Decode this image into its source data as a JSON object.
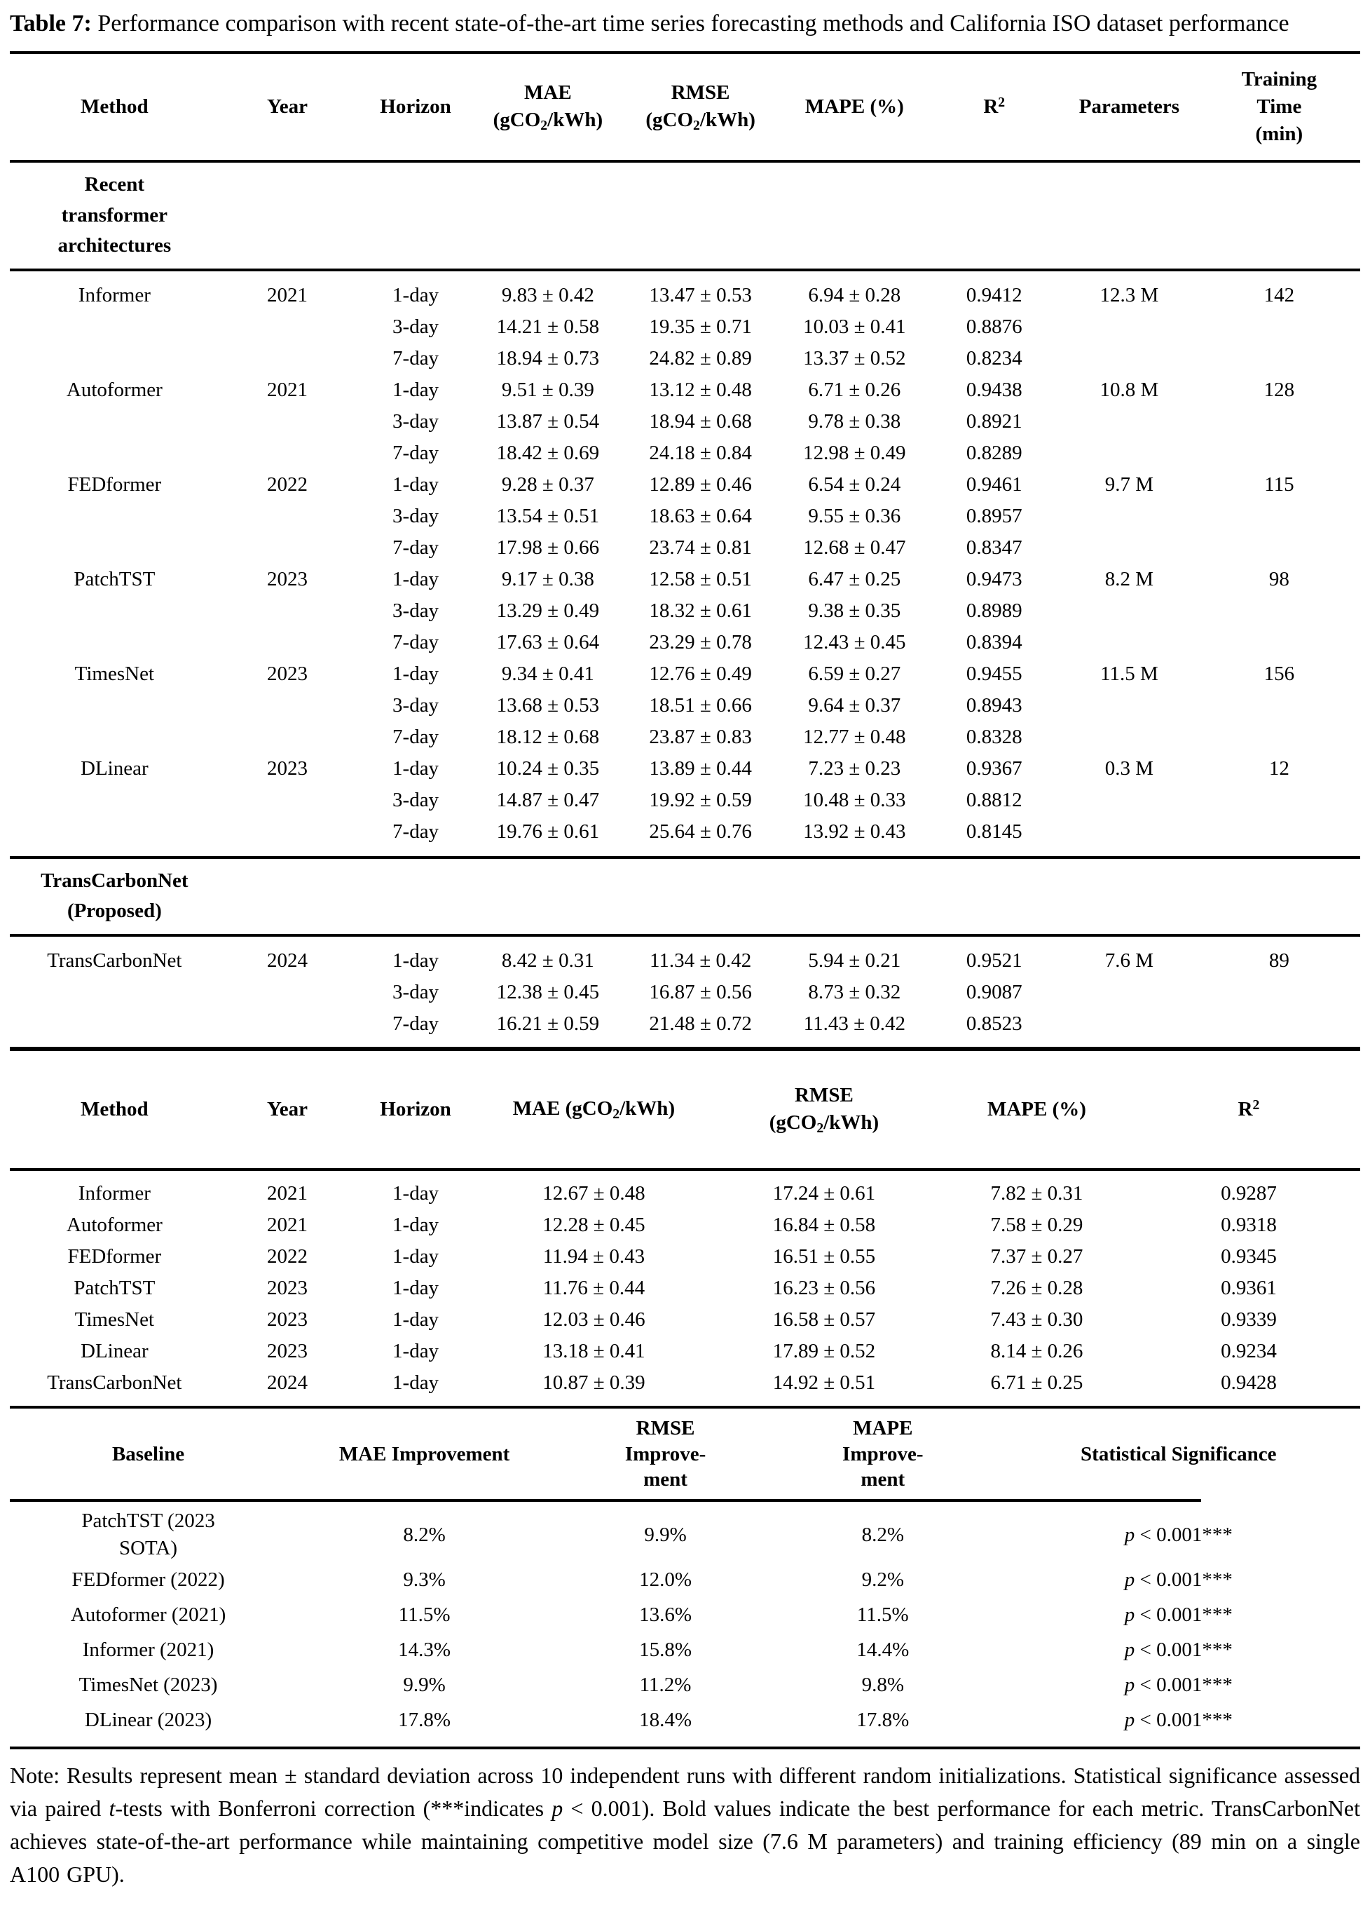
{
  "caption": {
    "label": "Table 7:",
    "text": " Performance comparison with recent state-of-the-art time series forecasting methods and California ISO dataset performance"
  },
  "main_table": {
    "headers": [
      "Method",
      "Year",
      "Horizon",
      "MAE\n(gCO_2_/kWh)",
      "RMSE\n(gCO_2_/kWh)",
      "MAPE (%)",
      "R^2^",
      "Parameters",
      "Training\nTime\n(min)"
    ],
    "col_keys": [
      "method",
      "year",
      "horizon",
      "mae",
      "rmse",
      "mape",
      "r2",
      "parameters",
      "training-time"
    ],
    "sections": [
      {
        "title": "Recent\ntransformer\narchitectures",
        "rows": [
          [
            "Informer",
            "2021",
            "1-day",
            "9.83 ± 0.42",
            "13.47 ± 0.53",
            "6.94 ± 0.28",
            "0.9412",
            "12.3 M",
            "142"
          ],
          [
            "",
            "",
            "3-day",
            "14.21 ± 0.58",
            "19.35 ± 0.71",
            "10.03 ± 0.41",
            "0.8876",
            "",
            ""
          ],
          [
            "",
            "",
            "7-day",
            "18.94 ± 0.73",
            "24.82 ± 0.89",
            "13.37 ± 0.52",
            "0.8234",
            "",
            ""
          ],
          [
            "Autoformer",
            "2021",
            "1-day",
            "9.51 ± 0.39",
            "13.12 ± 0.48",
            "6.71 ± 0.26",
            "0.9438",
            "10.8 M",
            "128"
          ],
          [
            "",
            "",
            "3-day",
            "13.87 ± 0.54",
            "18.94 ± 0.68",
            "9.78 ± 0.38",
            "0.8921",
            "",
            ""
          ],
          [
            "",
            "",
            "7-day",
            "18.42 ± 0.69",
            "24.18 ± 0.84",
            "12.98 ± 0.49",
            "0.8289",
            "",
            ""
          ],
          [
            "FEDformer",
            "2022",
            "1-day",
            "9.28 ± 0.37",
            "12.89 ± 0.46",
            "6.54 ± 0.24",
            "0.9461",
            "9.7 M",
            "115"
          ],
          [
            "",
            "",
            "3-day",
            "13.54 ± 0.51",
            "18.63 ± 0.64",
            "9.55 ± 0.36",
            "0.8957",
            "",
            ""
          ],
          [
            "",
            "",
            "7-day",
            "17.98 ± 0.66",
            "23.74 ± 0.81",
            "12.68 ± 0.47",
            "0.8347",
            "",
            ""
          ],
          [
            "PatchTST",
            "2023",
            "1-day",
            "9.17 ± 0.38",
            "12.58 ± 0.51",
            "6.47 ± 0.25",
            "0.9473",
            "8.2 M",
            "98"
          ],
          [
            "",
            "",
            "3-day",
            "13.29 ± 0.49",
            "18.32 ± 0.61",
            "9.38 ± 0.35",
            "0.8989",
            "",
            ""
          ],
          [
            "",
            "",
            "7-day",
            "17.63 ± 0.64",
            "23.29 ± 0.78",
            "12.43 ± 0.45",
            "0.8394",
            "",
            ""
          ],
          [
            "TimesNet",
            "2023",
            "1-day",
            "9.34 ± 0.41",
            "12.76 ± 0.49",
            "6.59 ± 0.27",
            "0.9455",
            "11.5 M",
            "156"
          ],
          [
            "",
            "",
            "3-day",
            "13.68 ± 0.53",
            "18.51 ± 0.66",
            "9.64 ± 0.37",
            "0.8943",
            "",
            ""
          ],
          [
            "",
            "",
            "7-day",
            "18.12 ± 0.68",
            "23.87 ± 0.83",
            "12.77 ± 0.48",
            "0.8328",
            "",
            ""
          ],
          [
            "DLinear",
            "2023",
            "1-day",
            "10.24 ± 0.35",
            "13.89 ± 0.44",
            "7.23 ± 0.23",
            "0.9367",
            "0.3 M",
            "12"
          ],
          [
            "",
            "",
            "3-day",
            "14.87 ± 0.47",
            "19.92 ± 0.59",
            "10.48 ± 0.33",
            "0.8812",
            "",
            ""
          ],
          [
            "",
            "",
            "7-day",
            "19.76 ± 0.61",
            "25.64 ± 0.76",
            "13.92 ± 0.43",
            "0.8145",
            "",
            ""
          ]
        ]
      },
      {
        "title": "TransCarbonNet\n(Proposed)",
        "rows": [
          [
            "TransCarbonNet",
            "2024",
            "1-day",
            "8.42 ± 0.31",
            "11.34 ± 0.42",
            "5.94 ± 0.21",
            "0.9521",
            "7.6 M",
            "89"
          ],
          [
            "",
            "",
            "3-day",
            "12.38 ± 0.45",
            "16.87 ± 0.56",
            "8.73 ± 0.32",
            "0.9087",
            "",
            ""
          ],
          [
            "",
            "",
            "7-day",
            "16.21 ± 0.59",
            "21.48 ± 0.72",
            "11.43 ± 0.42",
            "0.8523",
            "",
            ""
          ]
        ]
      }
    ]
  },
  "california_table": {
    "headers": [
      "Method",
      "Year",
      "Horizon",
      "MAE (gCO_2_/kWh)",
      "RMSE\n(gCO_2_/kWh)",
      "MAPE (%)",
      "R^2^"
    ],
    "col_keys": [
      "method",
      "year",
      "horizon",
      "mae",
      "rmse",
      "mape",
      "r2"
    ],
    "rows": [
      [
        "Informer",
        "2021",
        "1-day",
        "12.67 ± 0.48",
        "17.24 ± 0.61",
        "7.82 ± 0.31",
        "0.9287"
      ],
      [
        "Autoformer",
        "2021",
        "1-day",
        "12.28 ± 0.45",
        "16.84 ± 0.58",
        "7.58 ± 0.29",
        "0.9318"
      ],
      [
        "FEDformer",
        "2022",
        "1-day",
        "11.94 ± 0.43",
        "16.51 ± 0.55",
        "7.37 ± 0.27",
        "0.9345"
      ],
      [
        "PatchTST",
        "2023",
        "1-day",
        "11.76 ± 0.44",
        "16.23 ± 0.56",
        "7.26 ± 0.28",
        "0.9361"
      ],
      [
        "TimesNet",
        "2023",
        "1-day",
        "12.03 ± 0.46",
        "16.58 ± 0.57",
        "7.43 ± 0.30",
        "0.9339"
      ],
      [
        "DLinear",
        "2023",
        "1-day",
        "13.18 ± 0.41",
        "17.89 ± 0.52",
        "8.14 ± 0.26",
        "0.9234"
      ],
      [
        "TransCarbonNet",
        "2024",
        "1-day",
        "10.87 ± 0.39",
        "14.92 ± 0.51",
        "6.71 ± 0.25",
        "0.9428"
      ]
    ]
  },
  "improvement_table": {
    "headers": [
      "Baseline",
      "MAE Improvement",
      "RMSE\nImprove-\nment",
      "MAPE\nImprove-\nment",
      "Statistical Significance"
    ],
    "col_keys": [
      "baseline",
      "mae-improvement",
      "rmse-improvement",
      "mape-improvement",
      "statistical-significance"
    ],
    "rows": [
      [
        "PatchTST (2023\nSOTA)",
        "8.2%",
        "9.9%",
        "8.2%",
        "~p~ < 0.001***"
      ],
      [
        "FEDformer (2022)",
        "9.3%",
        "12.0%",
        "9.2%",
        "~p~ < 0.001***"
      ],
      [
        "Autoformer (2021)",
        "11.5%",
        "13.6%",
        "11.5%",
        "~p~ < 0.001***"
      ],
      [
        "Informer (2021)",
        "14.3%",
        "15.8%",
        "14.4%",
        "~p~ < 0.001***"
      ],
      [
        "TimesNet (2023)",
        "9.9%",
        "11.2%",
        "9.8%",
        "~p~ < 0.001***"
      ],
      [
        "DLinear (2023)",
        "17.8%",
        "18.4%",
        "17.8%",
        "~p~ < 0.001***"
      ]
    ]
  },
  "note": "Note: Results represent mean ± standard deviation across 10 independent runs with different random initializations. Statistical significance assessed via paired ~t~-tests with Bonferroni correction (***indicates ~p~ < 0.001). Bold values indicate the best performance for each metric. TransCarbonNet achieves state-of-the-art performance while maintaining competitive model size (7.6 M parameters) and training efficiency (89 min on a single A100 GPU)."
}
